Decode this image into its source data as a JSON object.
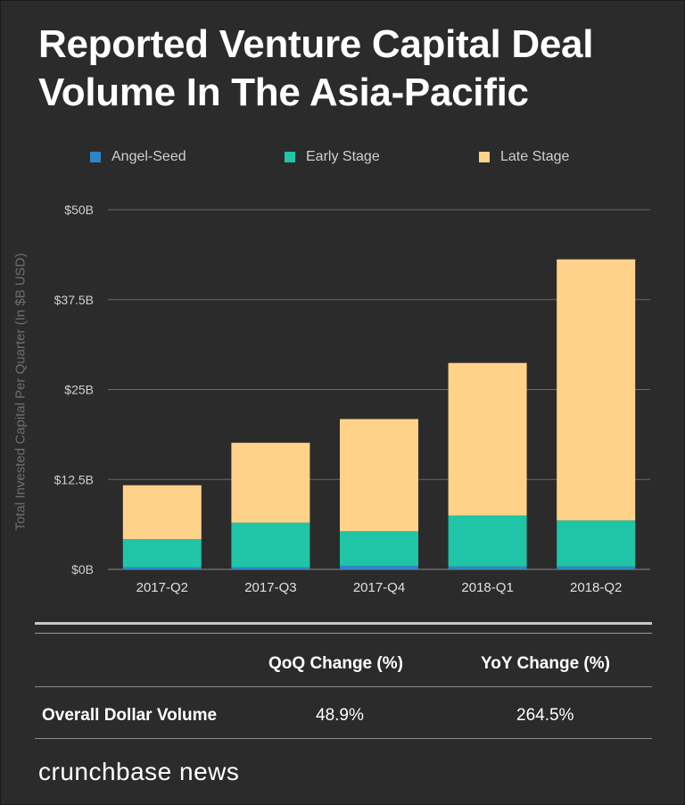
{
  "title": "Reported Venture Capital Deal Volume In The Asia-Pacific",
  "colors": {
    "angel_seed": "#2e86c8",
    "early_stage": "#1fc5a6",
    "late_stage": "#ffd28a",
    "background": "#2b2b2b"
  },
  "chart_data": {
    "type": "bar",
    "stacked": true,
    "categories": [
      "2017-Q2",
      "2017-Q3",
      "2017-Q4",
      "2018-Q1",
      "2018-Q2"
    ],
    "series": [
      {
        "name": "Angel-Seed",
        "values": [
          0.3,
          0.3,
          0.5,
          0.4,
          0.4
        ]
      },
      {
        "name": "Early Stage",
        "values": [
          3.9,
          6.2,
          4.8,
          7.1,
          6.4
        ]
      },
      {
        "name": "Late Stage",
        "values": [
          7.5,
          11.1,
          15.6,
          21.2,
          36.3
        ]
      }
    ],
    "ylabel": "Total Invested Capital Per Quarter (In $B USD)",
    "ylim": [
      0,
      50
    ],
    "yticks": [
      0,
      12.5,
      25,
      37.5,
      50
    ],
    "ytick_labels": [
      "$0B",
      "$12.5B",
      "$25B",
      "$37.5B",
      "$50B"
    ],
    "grid": true,
    "legend_position": "top"
  },
  "table": {
    "headers": [
      "QoQ Change (%)",
      "YoY Change (%)"
    ],
    "rows": [
      {
        "label": "Overall Dollar Volume",
        "qoq": "48.9%",
        "yoy": "264.5%"
      }
    ]
  },
  "brand": "crunchbase news"
}
